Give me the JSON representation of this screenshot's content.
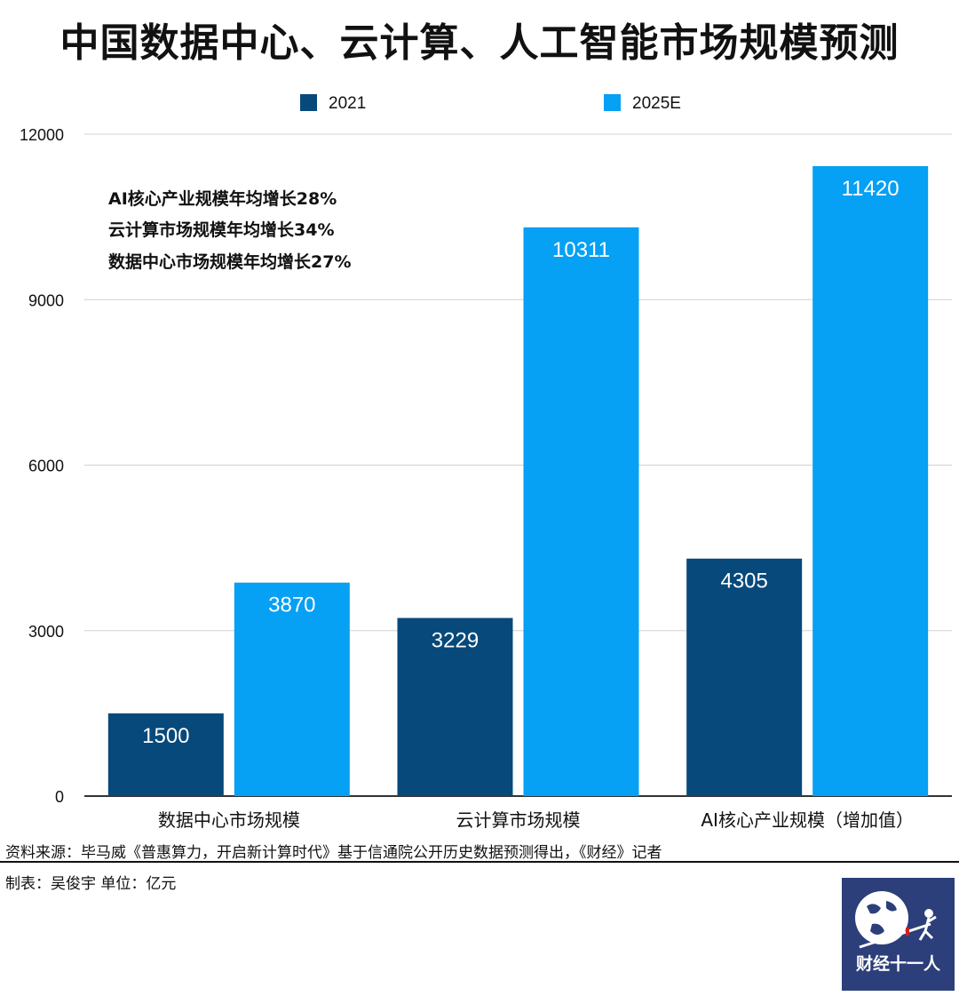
{
  "title": "中国数据中心、云计算、人工智能市场规模预测",
  "chart_data": {
    "type": "bar",
    "title": "中国数据中心、云计算、人工智能市场规模预测",
    "categories": [
      "数据中心市场规模",
      "云计算市场规模",
      "AI核心产业规模（增加值）"
    ],
    "series": [
      {
        "name": "2021",
        "values": [
          1500,
          3229,
          4305
        ],
        "color": "#07497a"
      },
      {
        "name": "2025E",
        "values": [
          3870,
          10311,
          11420
        ],
        "color": "#06a0f4"
      }
    ],
    "ylim": [
      0,
      12000
    ],
    "yticks": [
      0,
      3000,
      6000,
      9000,
      12000
    ],
    "grid": true,
    "legend": "top",
    "xlabel": "",
    "ylabel": "",
    "annotations": [
      "AI核心产业规模年均增长28%",
      "云计算市场规模年均增长34%",
      "数据中心市场规模年均增长27%"
    ]
  },
  "source": "资料来源：毕马威《普惠算力，开启新计算时代》基于信通院公开历史数据预测得出，《财经》记者",
  "credit": "制表：吴俊宇   单位：亿元",
  "logo": {
    "text": "财经十一人",
    "icon": "globe-icon"
  }
}
